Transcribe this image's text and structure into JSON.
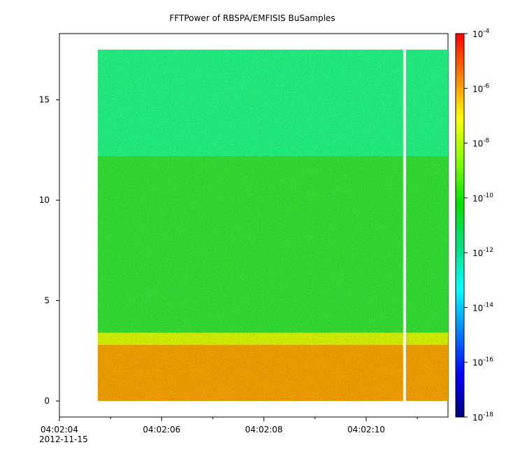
{
  "chart_data": {
    "type": "heatmap",
    "title": "FFTPower of RBSPA/EMFISIS  BuSamples",
    "xlabel": "",
    "ylabel": "",
    "x_axis": {
      "type": "time",
      "range": [
        "04:02:04",
        "04:02:11.6"
      ],
      "ticks": [
        {
          "time": "04:02:04",
          "label": "04:02:04",
          "sublabel": "2012-11-15"
        },
        {
          "time": "04:02:06",
          "label": "04:02:06"
        },
        {
          "time": "04:02:08",
          "label": "04:02:08"
        },
        {
          "time": "04:02:10",
          "label": "04:02:10"
        }
      ],
      "minor_ticks": [
        "04:02:05",
        "04:02:07",
        "04:02:09",
        "04:02:11"
      ]
    },
    "y_axis": {
      "range": [
        -0.8,
        18.3
      ],
      "ticks": [
        0,
        5,
        10,
        15
      ],
      "tick_labels": [
        "0",
        "5",
        "10",
        "15"
      ]
    },
    "colorbar": {
      "scale": "log",
      "range": [
        1e-18,
        0.0001
      ],
      "ticks": [
        -18,
        -16,
        -14,
        -12,
        -10,
        -8,
        -6,
        -4
      ],
      "tick_labels": [
        {
          "base": "10",
          "exp": "-18"
        },
        {
          "base": "10",
          "exp": "-16"
        },
        {
          "base": "10",
          "exp": "-14"
        },
        {
          "base": "10",
          "exp": "-12"
        },
        {
          "base": "10",
          "exp": "-10"
        },
        {
          "base": "10",
          "exp": "-8"
        },
        {
          "base": "10",
          "exp": "-6"
        },
        {
          "base": "10",
          "exp": "-4"
        }
      ],
      "colors": [
        "#00007f",
        "#0000ff",
        "#0080ff",
        "#00ffff",
        "#00e080",
        "#00e000",
        "#80ff00",
        "#ffff00",
        "#ff8000",
        "#ff0000"
      ]
    },
    "data_extent": {
      "x": [
        "04:02:04.75",
        "04:02:11.6"
      ],
      "y": [
        0,
        17.5
      ]
    },
    "data_gap": {
      "x": "04:02:10.75"
    },
    "bands": [
      {
        "y": [
          0,
          2.8
        ],
        "log10_power": -6.8,
        "color": "#f0a000"
      },
      {
        "y": [
          2.8,
          3.4
        ],
        "log10_power": -8.5,
        "color": "#d4f000"
      },
      {
        "y": [
          3.4,
          12.2
        ],
        "log10_power": -10.3,
        "color": "#33dd33"
      },
      {
        "y": [
          12.2,
          17.5
        ],
        "log10_power": -11.6,
        "color": "#22f080"
      }
    ]
  }
}
